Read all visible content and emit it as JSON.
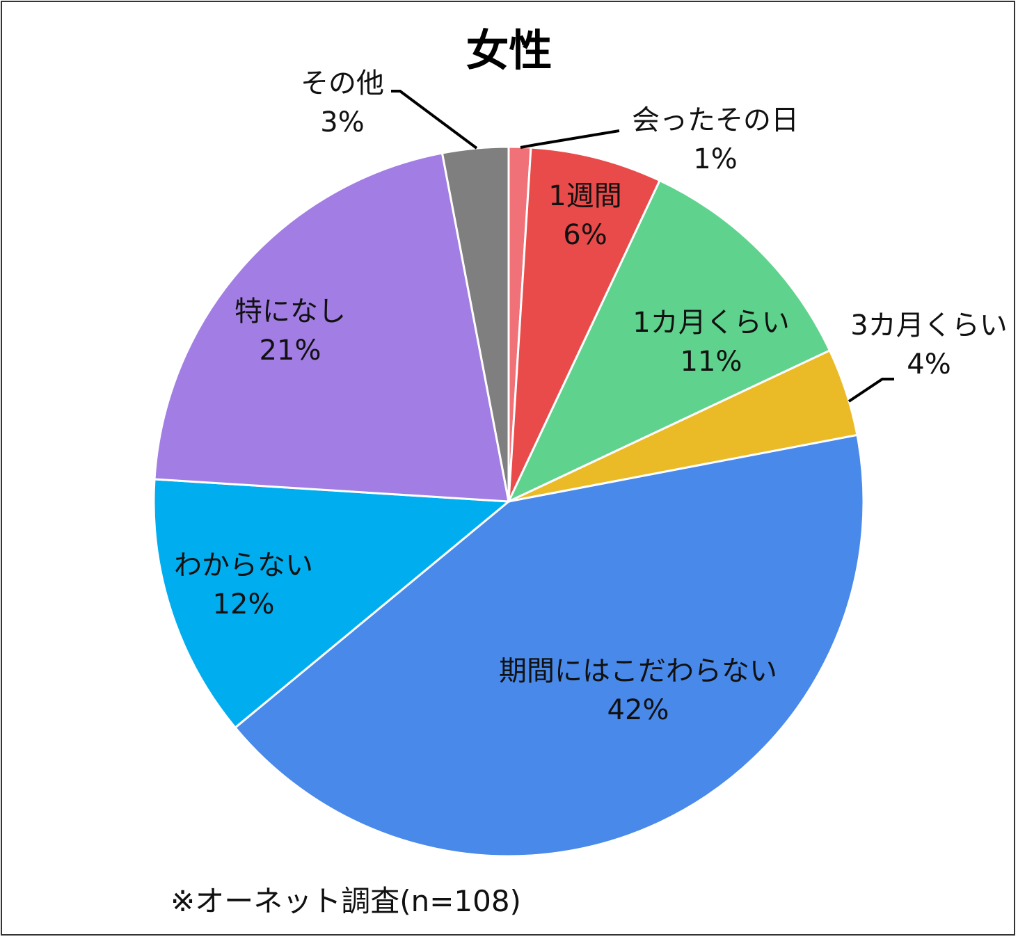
{
  "chart_data": {
    "type": "pie",
    "title": "女性",
    "categories": [
      "会ったその日",
      "1週間",
      "1カ月くらい",
      "3カ月くらい",
      "期間にはこだわらない",
      "わからない",
      "特になし",
      "その他"
    ],
    "values": [
      1,
      6,
      11,
      4,
      42,
      12,
      21,
      3
    ],
    "unit": "%",
    "colors": [
      "#f07178",
      "#e94b4b",
      "#5fd38d",
      "#ebbb27",
      "#4889ea",
      "#00aeef",
      "#a27de4",
      "#7f7f7f"
    ],
    "labels": [
      {
        "name": "会ったその日",
        "pct": "1%"
      },
      {
        "name": "1週間",
        "pct": "6%"
      },
      {
        "name": "1カ月くらい",
        "pct": "11%"
      },
      {
        "name": "3カ月くらい",
        "pct": "4%"
      },
      {
        "name": "期間にはこだわらない",
        "pct": "42%"
      },
      {
        "name": "わからない",
        "pct": "12%"
      },
      {
        "name": "特になし",
        "pct": "21%"
      },
      {
        "name": "その他",
        "pct": "3%"
      }
    ],
    "note": "※オーネット調査(n=108)"
  }
}
